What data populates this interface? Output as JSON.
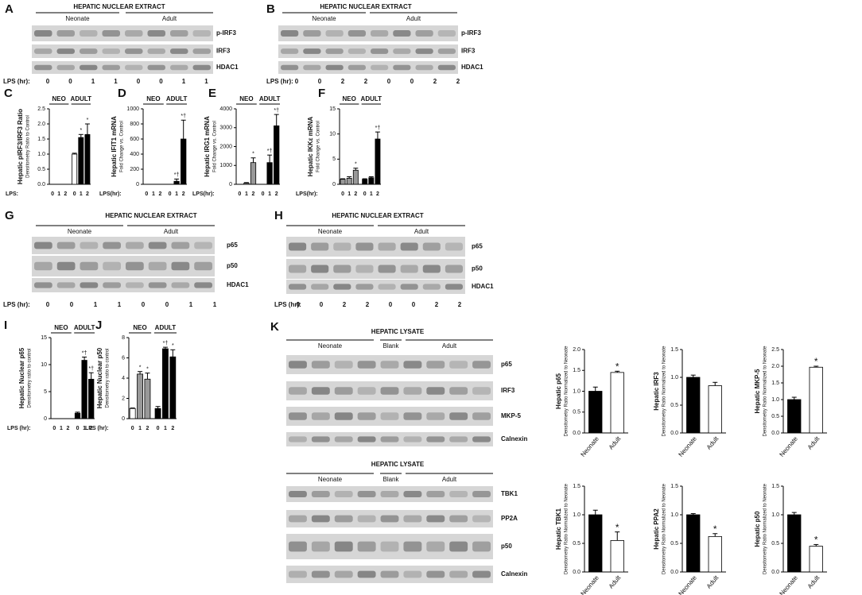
{
  "blots": [
    {
      "letter": "A",
      "title": "HEPATIC NUCLEAR EXTRACT",
      "groups": [
        "Neonate",
        "Adult"
      ],
      "bands": [
        "p-IRF3",
        "IRF3",
        "HDAC1"
      ],
      "lps_label": "LPS (hr):",
      "lanes": [
        0,
        0,
        1,
        1,
        0,
        0,
        1,
        1
      ]
    },
    {
      "letter": "B",
      "title": "HEPATIC NUCLEAR EXTRACT",
      "groups": [
        "Neonate",
        "Adult"
      ],
      "bands": [
        "p-IRF3",
        "IRF3",
        "HDAC1"
      ],
      "lps_label": "LPS (hr):",
      "lanes": [
        0,
        0,
        2,
        2,
        0,
        0,
        2,
        2
      ]
    },
    {
      "letter": "G",
      "title": "HEPATIC NUCLEAR EXTRACT",
      "groups": [
        "Neonate",
        "Adult"
      ],
      "bands": [
        "p65",
        "p50",
        "HDAC1"
      ],
      "lps_label": "LPS (hr):",
      "lanes": [
        0,
        0,
        1,
        1,
        0,
        0,
        1,
        1
      ]
    },
    {
      "letter": "H",
      "title": "HEPATIC NUCLEAR EXTRACT",
      "groups": [
        "Neonate",
        "Adult"
      ],
      "bands": [
        "p65",
        "p50",
        "HDAC1"
      ],
      "lps_label": "LPS (hr):",
      "lanes": [
        0,
        0,
        2,
        2,
        0,
        0,
        2,
        2
      ]
    },
    {
      "letter": "K",
      "title": "HEPATIC LYSATE",
      "groups": [
        "Neonate",
        "Blank",
        "Adult"
      ],
      "bands": [
        "p65",
        "IRF3",
        "MKP-5",
        "Calnexin"
      ]
    },
    {
      "title": "HEPATIC LYSATE",
      "groups": [
        "Neonate",
        "Blank",
        "Adult"
      ],
      "bands": [
        "TBK1",
        "PP2A",
        "p50",
        "Calnexin"
      ]
    }
  ],
  "chart_data": [
    {
      "letter": "C",
      "type": "bar",
      "ylabel": "Hepatic pIRF3/IRF3 Ratio",
      "ysublabel": "Densitometry Ratio to Control",
      "groups": [
        "NEO",
        "ADULT"
      ],
      "xlabel": "LPS:",
      "categories": [
        "0",
        "1",
        "2",
        "0",
        "1",
        "2"
      ],
      "values": [
        null,
        null,
        null,
        1.0,
        1.55,
        1.65
      ],
      "errors": [
        null,
        null,
        null,
        0.03,
        0.1,
        0.35
      ],
      "colors": [
        "#999",
        "#999",
        "#999",
        "#fff",
        "#000",
        "#000"
      ],
      "markers": [
        null,
        null,
        null,
        null,
        "*",
        "*"
      ],
      "ylim": [
        0,
        2.5
      ],
      "yticks": [
        {
          "value": 0,
          "label": "0.0"
        },
        0.5,
        {
          "value": 1,
          "label": "1.0"
        },
        1.5,
        {
          "value": 2,
          "label": "2.0"
        },
        2.5
      ]
    },
    {
      "letter": "D",
      "type": "bar",
      "ylabel": "Hepatic IFIT1 mRNA",
      "ysublabel": "Fold Change vs. Control",
      "groups": [
        "NEO",
        "ADULT"
      ],
      "xlabel": "LPS(hr):",
      "categories": [
        "0",
        "1",
        "2",
        "0",
        "1",
        "2"
      ],
      "values": [
        0,
        0,
        0,
        0,
        40,
        600
      ],
      "errors": [
        null,
        null,
        null,
        null,
        30,
        250
      ],
      "colors": [
        "#999",
        "#999",
        "#999",
        "#000",
        "#000",
        "#000"
      ],
      "markers": [
        null,
        null,
        null,
        null,
        "*†",
        "*†"
      ],
      "ylim": [
        0,
        1000
      ],
      "yticks": [
        0,
        200,
        400,
        600,
        800,
        1000
      ]
    },
    {
      "letter": "E",
      "type": "bar",
      "ylabel": "Hepatic IRG1 mRNA",
      "ysublabel": "Fold Change vs. Control",
      "groups": [
        "NEO",
        "ADULT"
      ],
      "xlabel": "LPS(hr):",
      "categories": [
        "0",
        "1",
        "2",
        "0",
        "1",
        "2"
      ],
      "values": [
        0,
        60,
        1150,
        0,
        1150,
        3100
      ],
      "errors": [
        null,
        30,
        250,
        null,
        400,
        600
      ],
      "colors": [
        "#999",
        "#999",
        "#999",
        "#000",
        "#000",
        "#000"
      ],
      "markers": [
        null,
        null,
        "*",
        null,
        "*†",
        "*†"
      ],
      "ylim": [
        0,
        4000
      ],
      "yticks": [
        0,
        1000,
        2000,
        3000,
        4000
      ]
    },
    {
      "letter": "F",
      "type": "bar",
      "ylabel": "Hepatic IKKε mRNA",
      "ysublabel": "Fold Change vs. Control",
      "groups": [
        "NEO",
        "ADULT"
      ],
      "xlabel": "LPS(hr):",
      "categories": [
        "0",
        "1",
        "2",
        "0",
        "1",
        "2"
      ],
      "values": [
        1.0,
        1.2,
        2.8,
        1.0,
        1.3,
        9.0
      ],
      "errors": [
        0.1,
        0.3,
        0.4,
        0.1,
        0.2,
        1.4
      ],
      "colors": [
        "#999",
        "#999",
        "#999",
        "#000",
        "#000",
        "#000"
      ],
      "markers": [
        null,
        null,
        "*",
        null,
        null,
        "*†"
      ],
      "ylim": [
        0,
        15
      ],
      "yticks": [
        0,
        5,
        10,
        15
      ]
    },
    {
      "letter": "I",
      "type": "bar",
      "ylabel": "Hepatic Nuclear p65",
      "ysublabel": "Densitometry ratio to control",
      "groups": [
        "NEO",
        "ADULT"
      ],
      "xlabel": "LPS (hr):",
      "categories": [
        "0",
        "1",
        "2",
        "0",
        "1",
        "2"
      ],
      "values": [
        null,
        null,
        null,
        1.0,
        10.8,
        7.3
      ],
      "errors": [
        null,
        null,
        null,
        0.2,
        0.6,
        1.2
      ],
      "colors": [
        "#999",
        "#999",
        "#999",
        "#000",
        "#000",
        "#000"
      ],
      "markers": [
        null,
        null,
        null,
        null,
        "*†",
        "*†"
      ],
      "ylim": [
        0,
        15
      ],
      "yticks": [
        0,
        5,
        10,
        15
      ]
    },
    {
      "letter": "J",
      "type": "bar",
      "ylabel": "Hepatic Nuclear p50",
      "ysublabel": "Densitometry ratio to control",
      "groups": [
        "NEO",
        "ADULT"
      ],
      "xlabel": "LPS (hr):",
      "categories": [
        "0",
        "1",
        "2",
        "0",
        "1",
        "2"
      ],
      "values": [
        1.0,
        4.4,
        3.9,
        1.0,
        6.9,
        6.1
      ],
      "errors": [
        0.05,
        0.25,
        0.6,
        0.2,
        0.15,
        0.7
      ],
      "colors": [
        "#fff",
        "#999",
        "#999",
        "#000",
        "#000",
        "#000"
      ],
      "markers": [
        null,
        "*",
        "*",
        null,
        "*†",
        "*"
      ],
      "ylim": [
        0,
        8
      ],
      "yticks": [
        0,
        2,
        4,
        6,
        8
      ]
    },
    {
      "type": "bar",
      "ylabel": "Hepatic p65",
      "ysublabel": "Densitometry Ratio Normalized to Neonate",
      "categories": [
        "Neonate",
        "Adult"
      ],
      "values": [
        1.0,
        1.45
      ],
      "errors": [
        0.1,
        0.03
      ],
      "colors": [
        "#000",
        "#fff"
      ],
      "markers": [
        null,
        "*"
      ],
      "ylim": [
        0,
        2
      ],
      "yticks": [
        {
          "value": 0,
          "label": "0.0"
        },
        0.5,
        {
          "value": 1,
          "label": "1.0"
        },
        1.5,
        {
          "value": 2,
          "label": "2.0"
        }
      ]
    },
    {
      "type": "bar",
      "ylabel": "Hepatic IRF3",
      "ysublabel": "Densitometry Ratio Normalized to Neonate",
      "categories": [
        "Neonate",
        "Adult"
      ],
      "values": [
        1.0,
        0.85
      ],
      "errors": [
        0.04,
        0.06
      ],
      "colors": [
        "#000",
        "#fff"
      ],
      "markers": [
        null,
        null
      ],
      "ylim": [
        0,
        1.5
      ],
      "yticks": [
        {
          "value": 0,
          "label": "0.0"
        },
        0.5,
        {
          "value": 1,
          "label": "1.0"
        },
        1.5
      ]
    },
    {
      "type": "bar",
      "ylabel": "Hepatic MKP-5",
      "ysublabel": "Densitometry Ratio Normalized to Neonate",
      "categories": [
        "Neonate",
        "Adult"
      ],
      "values": [
        1.0,
        1.97
      ],
      "errors": [
        0.07,
        0.03
      ],
      "colors": [
        "#000",
        "#fff"
      ],
      "markers": [
        null,
        "*"
      ],
      "ylim": [
        0,
        2.5
      ],
      "yticks": [
        {
          "value": 0,
          "label": "0.0"
        },
        0.5,
        {
          "value": 1,
          "label": "1.0"
        },
        1.5,
        {
          "value": 2,
          "label": "2.0"
        },
        2.5
      ]
    },
    {
      "type": "bar",
      "ylabel": "Hepatic TBK1",
      "ysublabel": "Densitometry Ratio Normalized to Neonate",
      "categories": [
        "Neonate",
        "Adult"
      ],
      "values": [
        1.0,
        0.55
      ],
      "errors": [
        0.08,
        0.15
      ],
      "colors": [
        "#000",
        "#fff"
      ],
      "markers": [
        null,
        "*"
      ],
      "ylim": [
        0,
        1.5
      ],
      "yticks": [
        {
          "value": 0,
          "label": "0.0"
        },
        0.5,
        {
          "value": 1,
          "label": "1.0"
        },
        1.5
      ]
    },
    {
      "type": "bar",
      "ylabel": "Hepatic PPA2",
      "ysublabel": "Densitometry Ratio Normalized to Neonate",
      "categories": [
        "Neonate",
        "Adult"
      ],
      "values": [
        1.0,
        0.62
      ],
      "errors": [
        0.02,
        0.05
      ],
      "colors": [
        "#000",
        "#fff"
      ],
      "markers": [
        null,
        "*"
      ],
      "ylim": [
        0,
        1.5
      ],
      "yticks": [
        {
          "value": 0,
          "label": "0.0"
        },
        0.5,
        {
          "value": 1,
          "label": "1.0"
        },
        1.5
      ]
    },
    {
      "type": "bar",
      "ylabel": "Hepatic p50",
      "ysublabel": "Densitometry Ratio Normalized to Neonate",
      "categories": [
        "Neonate",
        "Adult"
      ],
      "values": [
        1.0,
        0.45
      ],
      "errors": [
        0.04,
        0.03
      ],
      "colors": [
        "#000",
        "#fff"
      ],
      "markers": [
        null,
        "*"
      ],
      "ylim": [
        0,
        1.5
      ],
      "yticks": [
        {
          "value": 0,
          "label": "0.0"
        },
        0.5,
        {
          "value": 1,
          "label": "1.0"
        },
        1.5
      ]
    }
  ]
}
